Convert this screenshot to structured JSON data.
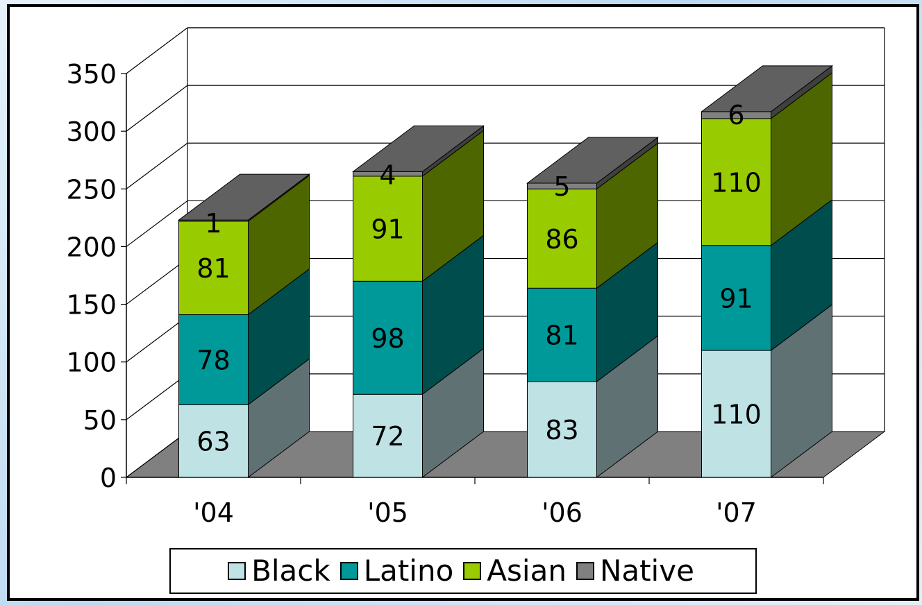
{
  "chart_data": {
    "type": "bar",
    "stacked": true,
    "three_d": true,
    "categories": [
      "'04",
      "'05",
      "'06",
      "'07"
    ],
    "series": [
      {
        "name": "Black",
        "values": [
          63,
          72,
          83,
          110
        ],
        "color": "#bfe2e5",
        "data_labels": [
          "63",
          "72",
          "83",
          "110"
        ]
      },
      {
        "name": "Latino",
        "values": [
          78,
          98,
          81,
          91
        ],
        "color": "#009999",
        "data_labels": [
          "78",
          "98",
          "81",
          "91"
        ]
      },
      {
        "name": "Asian",
        "values": [
          81,
          91,
          86,
          110
        ],
        "color": "#99cc00",
        "data_labels": [
          "81",
          "91",
          "86",
          "110"
        ]
      },
      {
        "name": "Native",
        "values": [
          1,
          4,
          5,
          6
        ],
        "color": "#808080",
        "data_labels": [
          "1",
          "4",
          "5",
          "6"
        ]
      }
    ],
    "y_ticks": [
      "0",
      "50",
      "100",
      "150",
      "200",
      "250",
      "300",
      "350"
    ],
    "ylim": [
      0,
      350
    ],
    "grid": true,
    "legend": "bottom",
    "floor_color": "#808080",
    "top_color": "#606060"
  }
}
